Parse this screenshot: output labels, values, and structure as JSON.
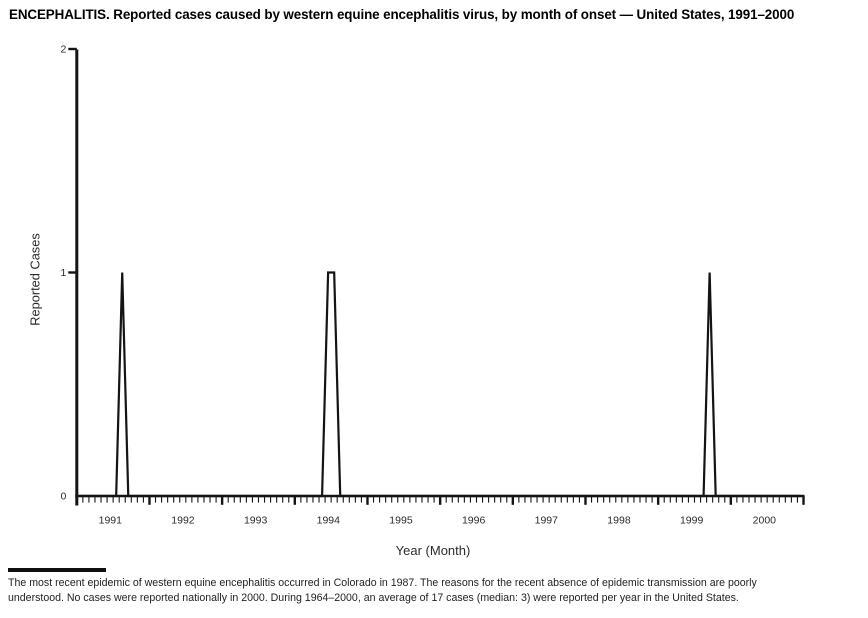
{
  "title": "ENCEPHALITIS. Reported cases caused by western equine encephalitis virus, by month of onset — United States, 1991–2000",
  "y_axis": {
    "label": "Reported Cases",
    "tick_labels": [
      "2",
      "1",
      "0"
    ],
    "tick_values": [
      2,
      1,
      0
    ]
  },
  "x_axis": {
    "label": "Year (Month)",
    "years": [
      "1991",
      "1992",
      "1993",
      "1994",
      "1995",
      "1996",
      "1997",
      "1998",
      "1999",
      "2000"
    ],
    "minor_ticks": "monthly"
  },
  "footnote": {
    "lines": [
      "The most recent epidemic of western equine encephalitis occurred in Colorado in 1987. The reasons for the recent absence of epidemic transmission are poorly",
      "understood. No cases were reported nationally in 2000. During 1964–2000, an average of 17 cases (median: 3) were reported per year in the United States."
    ]
  },
  "colors": {
    "line": "#141414",
    "axis": "#141414",
    "title_text": "#000000",
    "label_text": "#2b2b2b",
    "footnote_text": "#1f1f1f"
  },
  "chart_data": {
    "type": "line",
    "title": "ENCEPHALITIS. Reported cases caused by western equine encephalitis virus, by month of onset — United States, 1991–2000",
    "xlabel": "Year (Month)",
    "ylabel": "Reported Cases",
    "ylim": [
      0,
      2
    ],
    "y_ticks": [
      0,
      1,
      2
    ],
    "x_start": "1991-01",
    "x_end": "2000-12",
    "x_interval": "month",
    "grid": false,
    "legend": false,
    "nonzero_points": [
      {
        "month": "1991-08",
        "cases": 1
      },
      {
        "month": "1994-06",
        "cases": 1
      },
      {
        "month": "1994-07",
        "cases": 1
      },
      {
        "month": "1999-09",
        "cases": 1
      }
    ],
    "series": [
      {
        "name": "Reported cases",
        "values": [
          0,
          0,
          0,
          0,
          0,
          0,
          0,
          1,
          0,
          0,
          0,
          0,
          0,
          0,
          0,
          0,
          0,
          0,
          0,
          0,
          0,
          0,
          0,
          0,
          0,
          0,
          0,
          0,
          0,
          0,
          0,
          0,
          0,
          0,
          0,
          0,
          0,
          0,
          0,
          0,
          0,
          1,
          1,
          0,
          0,
          0,
          0,
          0,
          0,
          0,
          0,
          0,
          0,
          0,
          0,
          0,
          0,
          0,
          0,
          0,
          0,
          0,
          0,
          0,
          0,
          0,
          0,
          0,
          0,
          0,
          0,
          0,
          0,
          0,
          0,
          0,
          0,
          0,
          0,
          0,
          0,
          0,
          0,
          0,
          0,
          0,
          0,
          0,
          0,
          0,
          0,
          0,
          0,
          0,
          0,
          0,
          0,
          0,
          0,
          0,
          0,
          0,
          0,
          0,
          1,
          0,
          0,
          0,
          0,
          0,
          0,
          0,
          0,
          0,
          0,
          0,
          0,
          0,
          0,
          0
        ]
      }
    ]
  }
}
